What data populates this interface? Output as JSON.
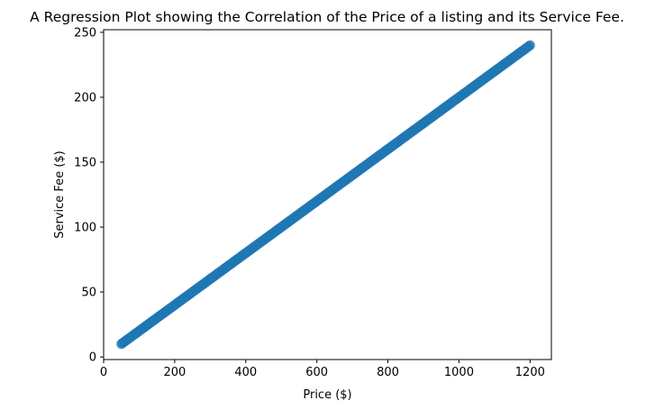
{
  "chart_data": {
    "type": "scatter",
    "title": "A Regression Plot showing the Correlation of the Price of a listing and its Service Fee.",
    "xlabel": "Price ($)",
    "ylabel": "Service Fee ($)",
    "xlim": [
      0,
      1260
    ],
    "ylim": [
      -2,
      252
    ],
    "xticks": [
      0,
      200,
      400,
      600,
      800,
      1000,
      1200
    ],
    "yticks": [
      0,
      50,
      100,
      150,
      200,
      250
    ],
    "grid": false,
    "legend": "none",
    "marker_color": "#1f77b4",
    "series": [
      {
        "x_range": [
          50,
          1200
        ],
        "slope": 0.2,
        "intercept": 0,
        "points": [
          [
            50,
            10
          ],
          [
            100,
            20
          ],
          [
            150,
            30
          ],
          [
            200,
            40
          ],
          [
            250,
            50
          ],
          [
            300,
            60
          ],
          [
            350,
            70
          ],
          [
            400,
            80
          ],
          [
            450,
            90
          ],
          [
            500,
            100
          ],
          [
            550,
            110
          ],
          [
            600,
            120
          ],
          [
            650,
            130
          ],
          [
            700,
            140
          ],
          [
            750,
            150
          ],
          [
            800,
            160
          ],
          [
            850,
            170
          ],
          [
            900,
            180
          ],
          [
            950,
            190
          ],
          [
            1000,
            200
          ],
          [
            1050,
            210
          ],
          [
            1100,
            220
          ],
          [
            1150,
            230
          ],
          [
            1200,
            240
          ]
        ]
      }
    ]
  }
}
